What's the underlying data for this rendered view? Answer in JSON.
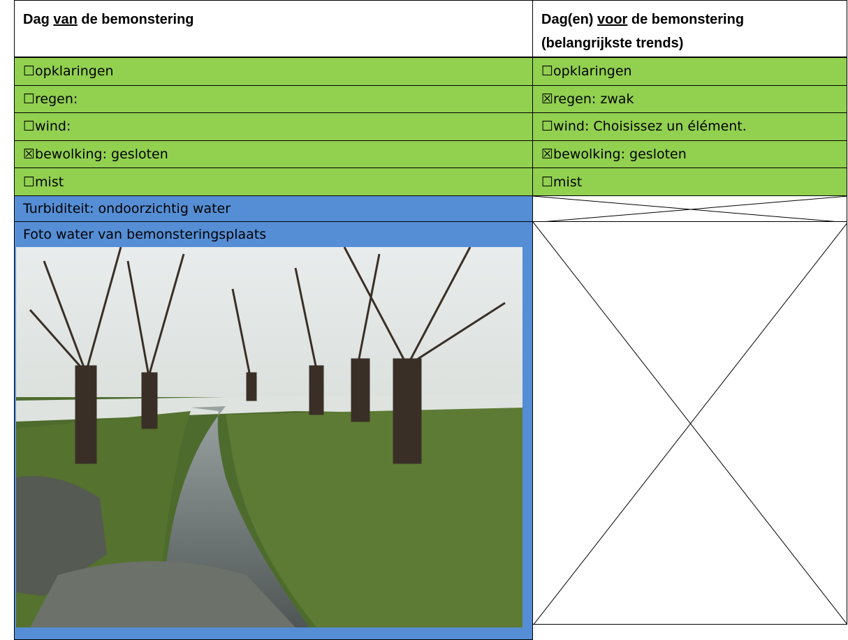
{
  "header": {
    "left": [
      "Dag ",
      "van",
      " de bemonstering"
    ],
    "right": [
      "Dag(en) ",
      "voor",
      " de bemonstering",
      "(belangrijkste trends)"
    ]
  },
  "rows": [
    {
      "left": "☐opklaringen",
      "right": "☐opklaringen"
    },
    {
      "left": "☐regen:",
      "right": "☒regen: zwak"
    },
    {
      "left": "☐wind:",
      "right": "☐wind: Choisissez un élément."
    },
    {
      "left": "☒bewolking: gesloten",
      "right": "☒bewolking: gesloten"
    },
    {
      "left": "☐mist",
      "right": "☐mist"
    }
  ],
  "turbidity": "Turbiditeit: ondoorzichtig water",
  "photo_label": "Foto water van bemonsteringsplaats"
}
